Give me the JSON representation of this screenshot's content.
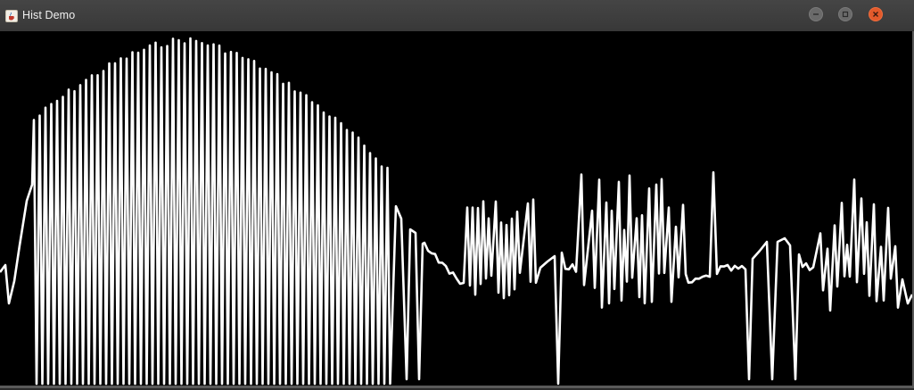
{
  "window": {
    "title": "Hist Demo",
    "icon": "java-cup-icon",
    "controls": [
      "minimize",
      "maximize",
      "close"
    ],
    "colors": {
      "titlebar": "#3c3c3c",
      "canvas": "#000000",
      "trace": "#ffffff",
      "close": "#e35a2b"
    }
  }
}
